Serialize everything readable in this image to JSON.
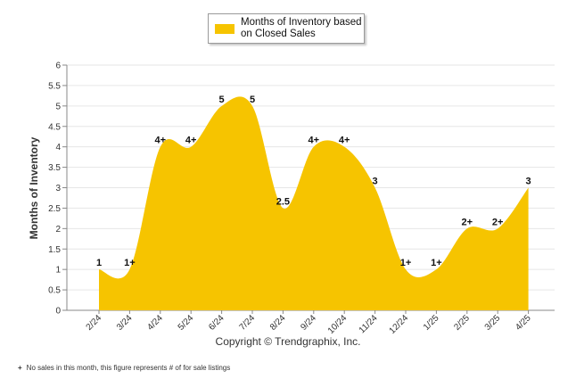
{
  "chart_data": {
    "type": "area",
    "legend": "Months of Inventory based on Closed Sales",
    "legend_position": "top-center",
    "ylabel": "Months of Inventory",
    "xlabel": "",
    "ylim": [
      0,
      6
    ],
    "yticks": [
      "0",
      "0.5",
      "1",
      "1.5",
      "2",
      "2.5",
      "3",
      "3.5",
      "4",
      "4.5",
      "5",
      "5.5",
      "6"
    ],
    "grid": true,
    "color": "#F6C400",
    "categories": [
      "2/24",
      "3/24",
      "4/24",
      "5/24",
      "6/24",
      "7/24",
      "8/24",
      "9/24",
      "10/24",
      "11/24",
      "12/24",
      "1/25",
      "2/25",
      "3/25",
      "4/25"
    ],
    "values": [
      1,
      1,
      4,
      4,
      5,
      5,
      2.5,
      4,
      4,
      3,
      1,
      1,
      2,
      2,
      3
    ],
    "data_labels": [
      "1",
      "1+",
      "4+",
      "4+",
      "5",
      "5",
      "2.5",
      "4+",
      "4+",
      "3",
      "1+",
      "1+",
      "2+",
      "2+",
      "3"
    ]
  },
  "copyright": "Copyright © Trendgraphix, Inc.",
  "footnote": {
    "mark": "+",
    "text": "No sales in this month, this figure represents # of for sale listings"
  }
}
